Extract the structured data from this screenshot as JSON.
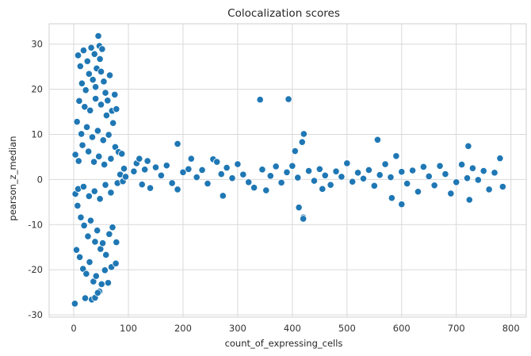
{
  "chart_data": {
    "type": "scatter",
    "title": "Colocalization scores",
    "xlabel": "count_of_expressing_cells",
    "ylabel": "pearson_z_median",
    "xlim": [
      -45,
      828
    ],
    "ylim": [
      -30.5,
      34.5
    ],
    "xticks": [
      0,
      100,
      200,
      300,
      400,
      500,
      600,
      700,
      800
    ],
    "yticks": [
      -30,
      -20,
      -10,
      0,
      10,
      20,
      30
    ],
    "grid": true,
    "marker_color": "#1f77b4",
    "marker_edge_color": "#ffffff",
    "gridline_color": "#d9d9d9",
    "series": [
      {
        "points": [
          [
            2,
            -27.5
          ],
          [
            8,
            27.5
          ],
          [
            12,
            25.1
          ],
          [
            15,
            21.3
          ],
          [
            18,
            28.6
          ],
          [
            22,
            19.8
          ],
          [
            25,
            26.2
          ],
          [
            28,
            23.4
          ],
          [
            32,
            29.2
          ],
          [
            35,
            22.1
          ],
          [
            38,
            27.8
          ],
          [
            40,
            20.5
          ],
          [
            42,
            24.6
          ],
          [
            45,
            31.8
          ],
          [
            47,
            29.6
          ],
          [
            48,
            26.7
          ],
          [
            50,
            23.9
          ],
          [
            52,
            28.9
          ],
          [
            55,
            21.7
          ],
          [
            58,
            19.2
          ],
          [
            62,
            17.5
          ],
          [
            66,
            23.1
          ],
          [
            70,
            15.2
          ],
          [
            75,
            18.8
          ],
          [
            78,
            15.6
          ],
          [
            10,
            17.4
          ],
          [
            20,
            16.1
          ],
          [
            30,
            15.3
          ],
          [
            40,
            17.9
          ],
          [
            50,
            16.6
          ],
          [
            60,
            14.2
          ],
          [
            72,
            12.5
          ],
          [
            6,
            12.8
          ],
          [
            14,
            10.1
          ],
          [
            24,
            11.6
          ],
          [
            34,
            9.4
          ],
          [
            44,
            10.8
          ],
          [
            54,
            8.7
          ],
          [
            64,
            9.9
          ],
          [
            76,
            7.2
          ],
          [
            82,
            6.1
          ],
          [
            88,
            5.7
          ],
          [
            92,
            2.4
          ],
          [
            3,
            5.5
          ],
          [
            9,
            4.1
          ],
          [
            16,
            7.6
          ],
          [
            27,
            6.2
          ],
          [
            37,
            3.9
          ],
          [
            46,
            5.1
          ],
          [
            56,
            3.3
          ],
          [
            68,
            4.6
          ],
          [
            3,
            -3.2
          ],
          [
            7,
            -5.8
          ],
          [
            13,
            -8.4
          ],
          [
            19,
            -10.2
          ],
          [
            26,
            -12.6
          ],
          [
            31,
            -9.1
          ],
          [
            39,
            -13.8
          ],
          [
            43,
            -11.3
          ],
          [
            49,
            -15.4
          ],
          [
            53,
            -14.1
          ],
          [
            59,
            -16.7
          ],
          [
            65,
            -12.1
          ],
          [
            71,
            -10.6
          ],
          [
            78,
            -13.9
          ],
          [
            5,
            -15.6
          ],
          [
            11,
            -17.2
          ],
          [
            17,
            -19.8
          ],
          [
            23,
            -20.9
          ],
          [
            29,
            -18.3
          ],
          [
            36,
            -22.6
          ],
          [
            41,
            -21.4
          ],
          [
            47,
            -24.8
          ],
          [
            51,
            -23.2
          ],
          [
            57,
            -20.1
          ],
          [
            63,
            -22.9
          ],
          [
            69,
            -19.4
          ],
          [
            77,
            -18.6
          ],
          [
            33,
            -26.6
          ],
          [
            39,
            -26.2
          ],
          [
            44,
            -25.1
          ],
          [
            21,
            -26.3
          ],
          [
            8,
            -2.1
          ],
          [
            18,
            -1.6
          ],
          [
            28,
            -3.7
          ],
          [
            38,
            -2.6
          ],
          [
            48,
            -4.3
          ],
          [
            58,
            -1.2
          ],
          [
            68,
            -2.9
          ],
          [
            80,
            -0.8
          ],
          [
            85,
            1.1
          ],
          [
            90,
            -0.4
          ],
          [
            95,
            0.6
          ],
          [
            341,
            17.7
          ],
          [
            393,
            17.8
          ],
          [
            190,
            7.9
          ],
          [
            421,
            10.1
          ],
          [
            418,
            8.3
          ],
          [
            556,
            8.8
          ],
          [
            722,
            7.4
          ],
          [
            405,
            6.3
          ],
          [
            412,
            -6.2
          ],
          [
            420,
            -8.4
          ],
          [
            420,
            -8.7
          ],
          [
            582,
            -4.1
          ],
          [
            600,
            -5.5
          ],
          [
            724,
            -4.5
          ],
          [
            273,
            -3.6
          ],
          [
            352,
            -2.4
          ],
          [
            455,
            -2.1
          ],
          [
            690,
            -3.1
          ],
          [
            190,
            -2.2
          ],
          [
            330,
            -1.8
          ],
          [
            630,
            -2.7
          ],
          [
            110,
            1.8
          ],
          [
            115,
            3.6
          ],
          [
            120,
            4.6
          ],
          [
            125,
            -1.1
          ],
          [
            130,
            2.2
          ],
          [
            135,
            4.1
          ],
          [
            140,
            -1.9
          ],
          [
            150,
            2.7
          ],
          [
            160,
            0.9
          ],
          [
            170,
            3.1
          ],
          [
            180,
            -0.8
          ],
          [
            200,
            1.6
          ],
          [
            210,
            2.3
          ],
          [
            215,
            4.6
          ],
          [
            225,
            0.5
          ],
          [
            235,
            2.1
          ],
          [
            245,
            -0.9
          ],
          [
            255,
            4.5
          ],
          [
            262,
            3.9
          ],
          [
            270,
            1.2
          ],
          [
            280,
            2.6
          ],
          [
            290,
            0.3
          ],
          [
            300,
            3.4
          ],
          [
            310,
            1.1
          ],
          [
            320,
            -0.6
          ],
          [
            345,
            2.2
          ],
          [
            360,
            0.8
          ],
          [
            370,
            2.9
          ],
          [
            380,
            -0.7
          ],
          [
            390,
            1.6
          ],
          [
            400,
            3.0
          ],
          [
            410,
            0.4
          ],
          [
            430,
            1.9
          ],
          [
            440,
            -0.3
          ],
          [
            450,
            2.3
          ],
          [
            460,
            0.9
          ],
          [
            470,
            -1.2
          ],
          [
            480,
            1.8
          ],
          [
            490,
            0.6
          ],
          [
            500,
            3.6
          ],
          [
            510,
            -0.5
          ],
          [
            520,
            1.5
          ],
          [
            530,
            0.2
          ],
          [
            540,
            2.1
          ],
          [
            550,
            -1.4
          ],
          [
            560,
            1.0
          ],
          [
            570,
            3.4
          ],
          [
            580,
            0.5
          ],
          [
            590,
            5.2
          ],
          [
            600,
            1.7
          ],
          [
            610,
            -0.9
          ],
          [
            620,
            2.0
          ],
          [
            640,
            2.8
          ],
          [
            650,
            0.7
          ],
          [
            660,
            -1.3
          ],
          [
            670,
            3.0
          ],
          [
            680,
            1.2
          ],
          [
            700,
            -0.6
          ],
          [
            710,
            3.3
          ],
          [
            720,
            0.3
          ],
          [
            730,
            2.5
          ],
          [
            740,
            -0.1
          ],
          [
            750,
            1.9
          ],
          [
            760,
            -2.2
          ],
          [
            770,
            1.5
          ],
          [
            780,
            4.7
          ],
          [
            785,
            -1.6
          ]
        ]
      }
    ]
  }
}
